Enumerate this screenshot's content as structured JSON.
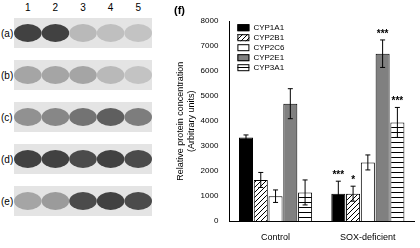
{
  "blot": {
    "lanes": [
      "1",
      "2",
      "3",
      "4",
      "5"
    ],
    "panels": [
      "(a)",
      "(b)",
      "(c)",
      "(d)",
      "(e)"
    ]
  },
  "chart_data": {
    "type": "bar",
    "title": "(f)",
    "y_label": [
      "Relative protein concentration",
      "(Arbitrary units)"
    ],
    "categories": [
      "Control",
      "SOX-deficient"
    ],
    "series": [
      {
        "name": "CYP1A1",
        "color": "#000000",
        "values": [
          3350,
          1100
        ],
        "errors": [
          100,
          500
        ],
        "significance": [
          null,
          "***"
        ]
      },
      {
        "name": "CYP2B1",
        "color": "#ffffff",
        "values": [
          1650,
          1100
        ],
        "errors": [
          300,
          300
        ],
        "significance": [
          null,
          "*"
        ]
      },
      {
        "name": "CYP2C6",
        "color": "#ffffff",
        "values": [
          1000,
          2350
        ],
        "errors": [
          250,
          300
        ],
        "significance": [
          null,
          null
        ]
      },
      {
        "name": "CYP2E1",
        "color": "#808080",
        "values": [
          4700,
          6700
        ],
        "errors": [
          600,
          550
        ],
        "significance": [
          null,
          "***"
        ]
      },
      {
        "name": "CYP3A1",
        "color": "#ffffff",
        "values": [
          1150,
          3950
        ],
        "errors": [
          500,
          600
        ],
        "significance": [
          null,
          "***"
        ]
      }
    ],
    "ylim": [
      0,
      8000
    ],
    "yticks": [
      0,
      1000,
      2000,
      3000,
      4000,
      5000,
      6000,
      7000,
      8000
    ],
    "grid": false,
    "legend": "upper left"
  }
}
